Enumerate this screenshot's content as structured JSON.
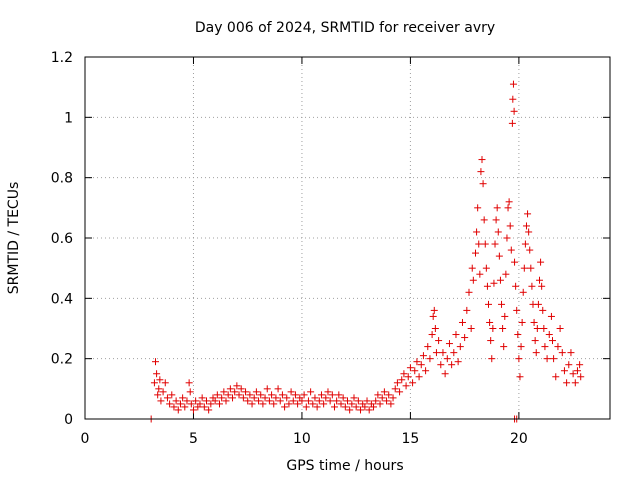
{
  "chart_data": {
    "type": "scatter",
    "title": "Day 006 of 2024, SRMTID for receiver avry",
    "xlabel": "GPS time / hours",
    "ylabel": "SRMTID / TECUs",
    "xlim": [
      0,
      24.2
    ],
    "ylim": [
      0,
      1.2
    ],
    "x_ticks": [
      0,
      5,
      10,
      15,
      20
    ],
    "x_tick_labels": [
      "0",
      "5",
      "10",
      "15",
      "20"
    ],
    "y_ticks": [
      0,
      0.2,
      0.4,
      0.6,
      0.8,
      1.0,
      1.2
    ],
    "y_tick_labels": [
      "0",
      "0.2",
      "0.4",
      "0.6",
      "0.8",
      "1",
      "1.2"
    ],
    "grid": true,
    "marker": "plus",
    "color": "#e00000",
    "series": [
      {
        "name": "SRMTID",
        "points": [
          [
            3.05,
            0.0
          ],
          [
            3.2,
            0.12
          ],
          [
            3.25,
            0.19
          ],
          [
            3.3,
            0.15
          ],
          [
            3.35,
            0.08
          ],
          [
            3.4,
            0.1
          ],
          [
            3.45,
            0.13
          ],
          [
            3.5,
            0.06
          ],
          [
            3.6,
            0.09
          ],
          [
            3.7,
            0.12
          ],
          [
            3.8,
            0.07
          ],
          [
            3.9,
            0.05
          ],
          [
            4.0,
            0.08
          ],
          [
            4.1,
            0.04
          ],
          [
            4.2,
            0.06
          ],
          [
            4.3,
            0.03
          ],
          [
            4.4,
            0.05
          ],
          [
            4.5,
            0.07
          ],
          [
            4.6,
            0.04
          ],
          [
            4.7,
            0.06
          ],
          [
            4.8,
            0.12
          ],
          [
            4.85,
            0.09
          ],
          [
            4.9,
            0.05
          ],
          [
            5.0,
            0.03
          ],
          [
            5.1,
            0.06
          ],
          [
            5.2,
            0.04
          ],
          [
            5.3,
            0.05
          ],
          [
            5.4,
            0.07
          ],
          [
            5.5,
            0.04
          ],
          [
            5.6,
            0.06
          ],
          [
            5.7,
            0.03
          ],
          [
            5.8,
            0.05
          ],
          [
            5.9,
            0.07
          ],
          [
            6.0,
            0.06
          ],
          [
            6.1,
            0.08
          ],
          [
            6.2,
            0.05
          ],
          [
            6.3,
            0.07
          ],
          [
            6.4,
            0.09
          ],
          [
            6.5,
            0.06
          ],
          [
            6.6,
            0.08
          ],
          [
            6.7,
            0.1
          ],
          [
            6.8,
            0.07
          ],
          [
            6.9,
            0.09
          ],
          [
            7.0,
            0.11
          ],
          [
            7.1,
            0.08
          ],
          [
            7.2,
            0.1
          ],
          [
            7.3,
            0.07
          ],
          [
            7.4,
            0.09
          ],
          [
            7.5,
            0.06
          ],
          [
            7.6,
            0.08
          ],
          [
            7.7,
            0.05
          ],
          [
            7.8,
            0.07
          ],
          [
            7.9,
            0.09
          ],
          [
            8.0,
            0.06
          ],
          [
            8.1,
            0.08
          ],
          [
            8.2,
            0.05
          ],
          [
            8.3,
            0.07
          ],
          [
            8.4,
            0.1
          ],
          [
            8.5,
            0.06
          ],
          [
            8.6,
            0.08
          ],
          [
            8.7,
            0.05
          ],
          [
            8.8,
            0.07
          ],
          [
            8.9,
            0.1
          ],
          [
            9.0,
            0.06
          ],
          [
            9.1,
            0.08
          ],
          [
            9.2,
            0.04
          ],
          [
            9.3,
            0.07
          ],
          [
            9.4,
            0.05
          ],
          [
            9.5,
            0.09
          ],
          [
            9.6,
            0.06
          ],
          [
            9.7,
            0.08
          ],
          [
            9.8,
            0.05
          ],
          [
            9.9,
            0.07
          ],
          [
            10.0,
            0.06
          ],
          [
            10.1,
            0.08
          ],
          [
            10.2,
            0.04
          ],
          [
            10.3,
            0.06
          ],
          [
            10.4,
            0.09
          ],
          [
            10.5,
            0.05
          ],
          [
            10.6,
            0.07
          ],
          [
            10.7,
            0.04
          ],
          [
            10.8,
            0.06
          ],
          [
            10.9,
            0.08
          ],
          [
            11.0,
            0.05
          ],
          [
            11.1,
            0.07
          ],
          [
            11.2,
            0.09
          ],
          [
            11.3,
            0.06
          ],
          [
            11.4,
            0.08
          ],
          [
            11.5,
            0.04
          ],
          [
            11.6,
            0.06
          ],
          [
            11.7,
            0.08
          ],
          [
            11.8,
            0.05
          ],
          [
            11.9,
            0.07
          ],
          [
            12.0,
            0.04
          ],
          [
            12.1,
            0.06
          ],
          [
            12.2,
            0.03
          ],
          [
            12.3,
            0.05
          ],
          [
            12.4,
            0.07
          ],
          [
            12.5,
            0.04
          ],
          [
            12.6,
            0.06
          ],
          [
            12.7,
            0.03
          ],
          [
            12.8,
            0.05
          ],
          [
            12.9,
            0.04
          ],
          [
            13.0,
            0.06
          ],
          [
            13.1,
            0.03
          ],
          [
            13.2,
            0.05
          ],
          [
            13.3,
            0.04
          ],
          [
            13.4,
            0.06
          ],
          [
            13.5,
            0.08
          ],
          [
            13.6,
            0.05
          ],
          [
            13.7,
            0.07
          ],
          [
            13.8,
            0.09
          ],
          [
            13.9,
            0.06
          ],
          [
            14.0,
            0.08
          ],
          [
            14.1,
            0.05
          ],
          [
            14.2,
            0.07
          ],
          [
            14.3,
            0.1
          ],
          [
            14.4,
            0.12
          ],
          [
            14.5,
            0.09
          ],
          [
            14.6,
            0.13
          ],
          [
            14.7,
            0.15
          ],
          [
            14.8,
            0.11
          ],
          [
            14.9,
            0.14
          ],
          [
            15.0,
            0.17
          ],
          [
            15.1,
            0.12
          ],
          [
            15.2,
            0.16
          ],
          [
            15.3,
            0.19
          ],
          [
            15.4,
            0.14
          ],
          [
            15.5,
            0.18
          ],
          [
            15.6,
            0.21
          ],
          [
            15.7,
            0.16
          ],
          [
            15.8,
            0.24
          ],
          [
            15.9,
            0.2
          ],
          [
            16.0,
            0.28
          ],
          [
            16.05,
            0.34
          ],
          [
            16.1,
            0.36
          ],
          [
            16.15,
            0.3
          ],
          [
            16.2,
            0.22
          ],
          [
            16.3,
            0.26
          ],
          [
            16.4,
            0.18
          ],
          [
            16.5,
            0.22
          ],
          [
            16.6,
            0.15
          ],
          [
            16.7,
            0.2
          ],
          [
            16.8,
            0.25
          ],
          [
            16.9,
            0.18
          ],
          [
            17.0,
            0.22
          ],
          [
            17.1,
            0.28
          ],
          [
            17.2,
            0.19
          ],
          [
            17.3,
            0.24
          ],
          [
            17.4,
            0.32
          ],
          [
            17.5,
            0.27
          ],
          [
            17.6,
            0.36
          ],
          [
            17.7,
            0.42
          ],
          [
            17.8,
            0.3
          ],
          [
            17.85,
            0.5
          ],
          [
            17.9,
            0.46
          ],
          [
            18.0,
            0.55
          ],
          [
            18.05,
            0.62
          ],
          [
            18.1,
            0.7
          ],
          [
            18.15,
            0.58
          ],
          [
            18.2,
            0.48
          ],
          [
            18.25,
            0.82
          ],
          [
            18.3,
            0.86
          ],
          [
            18.35,
            0.78
          ],
          [
            18.4,
            0.66
          ],
          [
            18.45,
            0.58
          ],
          [
            18.5,
            0.5
          ],
          [
            18.55,
            0.44
          ],
          [
            18.6,
            0.38
          ],
          [
            18.65,
            0.32
          ],
          [
            18.7,
            0.26
          ],
          [
            18.75,
            0.2
          ],
          [
            18.8,
            0.3
          ],
          [
            18.85,
            0.45
          ],
          [
            18.9,
            0.58
          ],
          [
            18.95,
            0.66
          ],
          [
            19.0,
            0.7
          ],
          [
            19.05,
            0.62
          ],
          [
            19.1,
            0.54
          ],
          [
            19.15,
            0.46
          ],
          [
            19.2,
            0.38
          ],
          [
            19.25,
            0.3
          ],
          [
            19.3,
            0.24
          ],
          [
            19.35,
            0.34
          ],
          [
            19.4,
            0.48
          ],
          [
            19.45,
            0.6
          ],
          [
            19.5,
            0.7
          ],
          [
            19.55,
            0.72
          ],
          [
            19.6,
            0.64
          ],
          [
            19.65,
            0.56
          ],
          [
            19.7,
            0.98
          ],
          [
            19.72,
            1.06
          ],
          [
            19.75,
            1.11
          ],
          [
            19.78,
            1.02
          ],
          [
            19.8,
            0.52
          ],
          [
            19.85,
            0.44
          ],
          [
            19.9,
            0.36
          ],
          [
            19.95,
            0.28
          ],
          [
            20.0,
            0.2
          ],
          [
            20.05,
            0.14
          ],
          [
            20.1,
            0.24
          ],
          [
            20.15,
            0.32
          ],
          [
            20.2,
            0.42
          ],
          [
            20.25,
            0.5
          ],
          [
            20.3,
            0.58
          ],
          [
            20.35,
            0.64
          ],
          [
            20.4,
            0.68
          ],
          [
            20.45,
            0.62
          ],
          [
            20.5,
            0.56
          ],
          [
            20.55,
            0.5
          ],
          [
            20.6,
            0.44
          ],
          [
            20.65,
            0.38
          ],
          [
            20.7,
            0.32
          ],
          [
            20.75,
            0.26
          ],
          [
            20.8,
            0.22
          ],
          [
            20.85,
            0.3
          ],
          [
            20.9,
            0.38
          ],
          [
            20.95,
            0.46
          ],
          [
            21.0,
            0.52
          ],
          [
            21.05,
            0.44
          ],
          [
            21.1,
            0.36
          ],
          [
            21.15,
            0.3
          ],
          [
            21.2,
            0.24
          ],
          [
            21.3,
            0.2
          ],
          [
            21.4,
            0.28
          ],
          [
            21.5,
            0.34
          ],
          [
            21.55,
            0.26
          ],
          [
            21.6,
            0.2
          ],
          [
            21.7,
            0.14
          ],
          [
            21.8,
            0.24
          ],
          [
            21.9,
            0.3
          ],
          [
            22.0,
            0.22
          ],
          [
            22.1,
            0.16
          ],
          [
            22.2,
            0.12
          ],
          [
            22.3,
            0.18
          ],
          [
            22.4,
            0.22
          ],
          [
            22.5,
            0.15
          ],
          [
            22.6,
            0.12
          ],
          [
            22.7,
            0.16
          ],
          [
            22.8,
            0.18
          ],
          [
            22.85,
            0.14
          ],
          [
            19.8,
            0.0
          ],
          [
            19.9,
            0.0
          ]
        ]
      }
    ]
  }
}
